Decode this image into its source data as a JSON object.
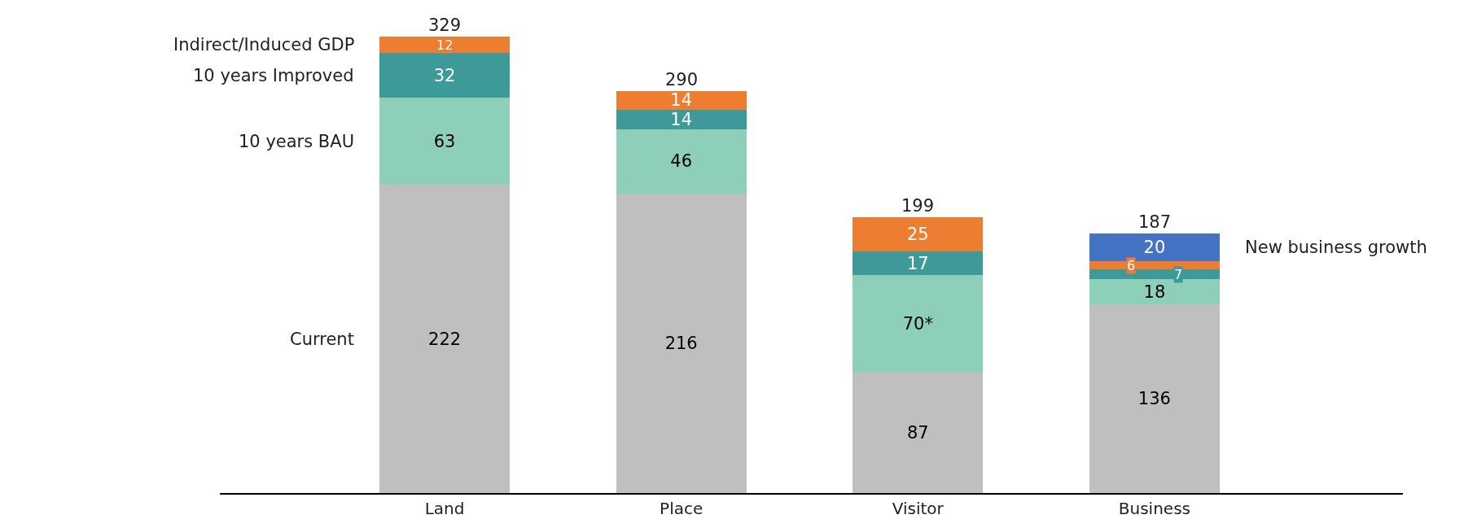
{
  "chart_data": {
    "type": "bar",
    "stacked": true,
    "categories": [
      "Land",
      "Place",
      "Visitor",
      "Business"
    ],
    "series": [
      {
        "name": "Current",
        "color": "#bfbfbf",
        "values": [
          222,
          216,
          87,
          136
        ]
      },
      {
        "name": "10 years BAU",
        "color": "#8ecfb9",
        "values": [
          63,
          46,
          70,
          18
        ],
        "value_labels": [
          "63",
          "46",
          "70*",
          "18"
        ]
      },
      {
        "name": "10 years Improved",
        "color": "#3d9a98",
        "values": [
          32,
          14,
          17,
          7
        ]
      },
      {
        "name": "Indirect/Induced GDP",
        "color": "#ed7d31",
        "values": [
          12,
          14,
          25,
          6
        ]
      },
      {
        "name": "New business growth",
        "color": "#4472c4",
        "values": [
          null,
          null,
          null,
          20
        ]
      }
    ],
    "data_labels": true,
    "totals": [
      "329",
      "290",
      "199",
      "187"
    ],
    "legend": false
  }
}
